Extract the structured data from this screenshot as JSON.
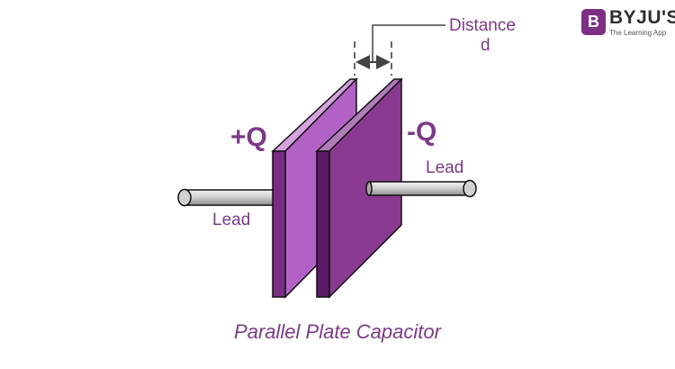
{
  "labels": {
    "positive_charge": "+Q",
    "negative_charge": "-Q",
    "lead_left": "Lead",
    "lead_right": "Lead",
    "distance_line1": "Distance",
    "distance_line2": "d",
    "caption": "Parallel Plate Capacitor"
  },
  "logo": {
    "badge_letter": "B",
    "name": "BYJU'S",
    "tagline": "The Learning App"
  },
  "colors": {
    "front_plate": "#b262c4",
    "front_plate_edge": "#7b2c85",
    "back_plate": "#8a3a90",
    "back_plate_edge": "#5c1a66",
    "text_accent": "#7b3a86",
    "lead_metal": "#d9d9d9"
  }
}
